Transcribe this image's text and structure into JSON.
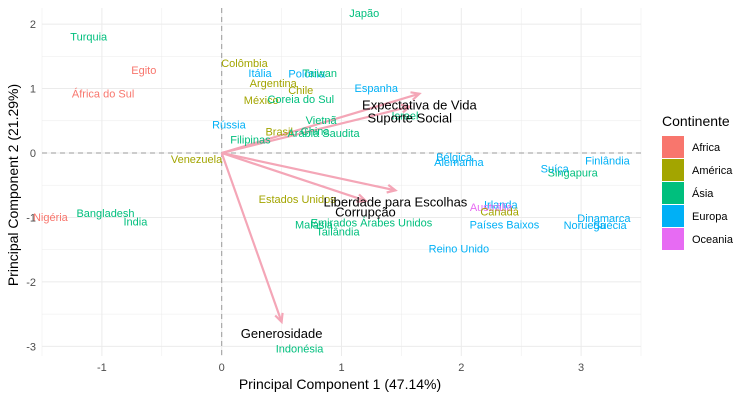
{
  "chart_data": {
    "type": "scatter",
    "xlabel": "Principal Component 1 (47.14%)",
    "ylabel": "Principal Component 2 (21.29%)",
    "xlim": [
      -1.5,
      3.5
    ],
    "ylim": [
      -3.15,
      2.25
    ],
    "x_ticks": [
      "-1",
      "0",
      "1",
      "2",
      "3"
    ],
    "x_tick_values": [
      -1,
      0,
      1,
      2,
      3
    ],
    "y_ticks": [
      "-3",
      "-2",
      "-1",
      "0",
      "1",
      "2"
    ],
    "y_tick_values": [
      -3,
      -2,
      -1,
      0,
      1,
      2
    ],
    "grid": true,
    "zero_lines": "dashed",
    "legend": {
      "title": "Continente",
      "placement": "right",
      "items": [
        {
          "name": "Africa",
          "color": "#F8766D"
        },
        {
          "name": "América",
          "color": "#A3A500"
        },
        {
          "name": "Ásia",
          "color": "#00BF7D"
        },
        {
          "name": "Europa",
          "color": "#00B0F6"
        },
        {
          "name": "Oceania",
          "color": "#E76BF3"
        }
      ]
    },
    "points": [
      {
        "label": "Japão",
        "x": 1.19,
        "y": 2.17,
        "group": "Ásia"
      },
      {
        "label": "Turquia",
        "x": -1.11,
        "y": 1.81,
        "group": "Ásia"
      },
      {
        "label": "Egito",
        "x": -0.65,
        "y": 1.29,
        "group": "Africa"
      },
      {
        "label": "África do Sul",
        "x": -0.99,
        "y": 0.92,
        "group": "Africa"
      },
      {
        "label": "Colômbia",
        "x": 0.19,
        "y": 1.4,
        "group": "América"
      },
      {
        "label": "Itália",
        "x": 0.32,
        "y": 1.24,
        "group": "Europa"
      },
      {
        "label": "Polônia",
        "x": 0.71,
        "y": 1.23,
        "group": "Europa"
      },
      {
        "label": "Taiwan",
        "x": 0.82,
        "y": 1.24,
        "group": "Ásia"
      },
      {
        "label": "Argentina",
        "x": 0.43,
        "y": 1.09,
        "group": "América"
      },
      {
        "label": "Chile",
        "x": 0.66,
        "y": 0.98,
        "group": "América"
      },
      {
        "label": "México",
        "x": 0.33,
        "y": 0.82,
        "group": "América"
      },
      {
        "label": "Coreia do Sul",
        "x": 0.66,
        "y": 0.84,
        "group": "Ásia"
      },
      {
        "label": "Espanha",
        "x": 1.29,
        "y": 1.01,
        "group": "Europa"
      },
      {
        "label": "Israel",
        "x": 1.53,
        "y": 0.58,
        "group": "Ásia"
      },
      {
        "label": "Rússia",
        "x": 0.06,
        "y": 0.44,
        "group": "Europa"
      },
      {
        "label": "Vietnã",
        "x": 0.83,
        "y": 0.51,
        "group": "Ásia"
      },
      {
        "label": "Brasil",
        "x": 0.48,
        "y": 0.33,
        "group": "América"
      },
      {
        "label": "China",
        "x": 0.78,
        "y": 0.34,
        "group": "Ásia"
      },
      {
        "label": "Arábia Saudita",
        "x": 0.85,
        "y": 0.31,
        "group": "Ásia"
      },
      {
        "label": "Filipinas",
        "x": 0.24,
        "y": 0.21,
        "group": "Ásia"
      },
      {
        "label": "Venezuela",
        "x": -0.21,
        "y": -0.09,
        "group": "América"
      },
      {
        "label": "Bélgica",
        "x": 1.94,
        "y": -0.06,
        "group": "Europa"
      },
      {
        "label": "Alemanha",
        "x": 1.98,
        "y": -0.14,
        "group": "Europa"
      },
      {
        "label": "Finlândia",
        "x": 3.22,
        "y": -0.12,
        "group": "Europa"
      },
      {
        "label": "Suíça",
        "x": 2.78,
        "y": -0.24,
        "group": "Europa"
      },
      {
        "label": "Singapura",
        "x": 2.93,
        "y": -0.3,
        "group": "Ásia"
      },
      {
        "label": "Estados Unidos",
        "x": 0.63,
        "y": -0.71,
        "group": "América"
      },
      {
        "label": "Irlanda",
        "x": 2.33,
        "y": -0.8,
        "group": "Europa"
      },
      {
        "label": "Austrália",
        "x": 2.25,
        "y": -0.84,
        "group": "Oceania"
      },
      {
        "label": "Canadá",
        "x": 2.32,
        "y": -0.91,
        "group": "América"
      },
      {
        "label": "Nigéria",
        "x": -1.43,
        "y": -0.99,
        "group": "Africa"
      },
      {
        "label": "Bangladesh",
        "x": -0.97,
        "y": -0.93,
        "group": "Ásia"
      },
      {
        "label": "Índia",
        "x": -0.72,
        "y": -1.06,
        "group": "Ásia"
      },
      {
        "label": "Malásia",
        "x": 0.77,
        "y": -1.11,
        "group": "Ásia"
      },
      {
        "label": "Tailândia",
        "x": 0.97,
        "y": -1.22,
        "group": "Ásia"
      },
      {
        "label": "Emirados Árabes Unidos",
        "x": 1.25,
        "y": -1.08,
        "group": "Ásia"
      },
      {
        "label": "Países Baixos",
        "x": 2.36,
        "y": -1.11,
        "group": "Europa"
      },
      {
        "label": "Dinamarca",
        "x": 3.19,
        "y": -1.01,
        "group": "Europa"
      },
      {
        "label": "Noruega",
        "x": 3.03,
        "y": -1.12,
        "group": "Europa"
      },
      {
        "label": "Suécia",
        "x": 3.24,
        "y": -1.12,
        "group": "Europa"
      },
      {
        "label": "Reino Unido",
        "x": 1.98,
        "y": -1.48,
        "group": "Europa"
      },
      {
        "label": "Indonésia",
        "x": 0.65,
        "y": -3.03,
        "group": "Ásia"
      }
    ],
    "arrows": [
      {
        "label": "Expectativa de Vida",
        "x": 1.65,
        "y": 0.92
      },
      {
        "label": "Suporte Social",
        "x": 1.57,
        "y": 0.72
      },
      {
        "label": "Liberdade para Escolhas",
        "x": 1.45,
        "y": -0.58
      },
      {
        "label": "Corrupção",
        "x": 1.2,
        "y": -0.74
      },
      {
        "label": "Generosidade",
        "x": 0.5,
        "y": -2.62
      }
    ],
    "arrow_color": "#F4A6B7"
  }
}
